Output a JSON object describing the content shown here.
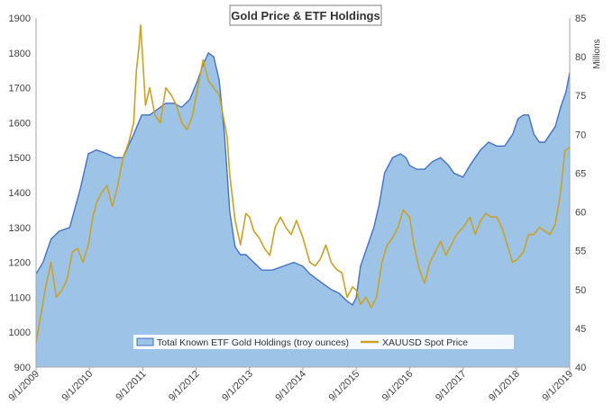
{
  "chart_data": {
    "type": "area",
    "title": "Gold Price & ETF Holdings",
    "x_tick_labels": [
      "9/1/2009",
      "9/1/2010",
      "9/1/2011",
      "9/1/2012",
      "9/1/2013",
      "9/1/2014",
      "9/1/2015",
      "9/1/2016",
      "9/1/2017",
      "9/1/2018",
      "9/1/2019"
    ],
    "y_left": {
      "ticks": [
        900,
        1000,
        1100,
        1200,
        1300,
        1400,
        1500,
        1600,
        1700,
        1800,
        1900
      ],
      "ylim": [
        900,
        1900
      ]
    },
    "y_right": {
      "label": "Millions",
      "ticks": [
        40,
        45,
        50,
        55,
        60,
        65,
        70,
        75,
        80,
        85
      ],
      "ylim": [
        40,
        85
      ]
    },
    "grid": false,
    "legend_position": "bottom-center",
    "colors": {
      "etf_fill": "#9dc3e6",
      "etf_line": "#4472c4",
      "spot_line": "#c9a227"
    },
    "series": [
      {
        "name": "Total Known ETF Gold Holdings (troy ounces)",
        "axis": "right",
        "kind": "area",
        "x": [
          2009.67,
          2009.8,
          2009.95,
          2010.1,
          2010.3,
          2010.5,
          2010.65,
          2010.8,
          2011.0,
          2011.15,
          2011.3,
          2011.5,
          2011.65,
          2011.8,
          2012.0,
          2012.1,
          2012.25,
          2012.4,
          2012.55,
          2012.7,
          2012.8,
          2012.9,
          2013.0,
          2013.1,
          2013.2,
          2013.3,
          2013.4,
          2013.5,
          2013.6,
          2013.75,
          2013.9,
          2014.1,
          2014.3,
          2014.5,
          2014.67,
          2014.8,
          2015.0,
          2015.2,
          2015.35,
          2015.5,
          2015.6,
          2015.67,
          2015.75,
          2015.9,
          2016.0,
          2016.1,
          2016.2,
          2016.35,
          2016.5,
          2016.6,
          2016.67,
          2016.8,
          2016.95,
          2017.1,
          2017.25,
          2017.4,
          2017.5,
          2017.67,
          2017.8,
          2018.0,
          2018.15,
          2018.3,
          2018.45,
          2018.6,
          2018.7,
          2018.8,
          2018.9,
          2019.0,
          2019.1,
          2019.2,
          2019.3,
          2019.4,
          2019.5,
          2019.6,
          2019.67
        ],
        "values": [
          52,
          53.5,
          56.5,
          57.5,
          58,
          63,
          67.5,
          68,
          67.5,
          67,
          67,
          70,
          72.5,
          72.5,
          73.5,
          74,
          74,
          73.5,
          74.5,
          77,
          79,
          80.5,
          80,
          77,
          70,
          60,
          55.5,
          54.5,
          54.5,
          53.5,
          52.5,
          52.5,
          53,
          53.5,
          53,
          52,
          51,
          50,
          49.5,
          48.5,
          48,
          49,
          53,
          56,
          58,
          61,
          65,
          67,
          67.5,
          67,
          66,
          65.5,
          65.5,
          66.5,
          67,
          66,
          65,
          64.5,
          66,
          68,
          69,
          68.5,
          68.5,
          70,
          72,
          72.5,
          72.5,
          70,
          69,
          69,
          70,
          71,
          73.5,
          75.5,
          78
        ]
      },
      {
        "name": "XAUUSD Spot Price",
        "axis": "left",
        "kind": "line",
        "x": [
          2009.67,
          2009.75,
          2009.85,
          2009.95,
          2010.05,
          2010.15,
          2010.25,
          2010.35,
          2010.45,
          2010.55,
          2010.65,
          2010.72,
          2010.8,
          2010.9,
          2011.0,
          2011.1,
          2011.2,
          2011.3,
          2011.4,
          2011.5,
          2011.55,
          2011.6,
          2011.63,
          2011.67,
          2011.72,
          2011.8,
          2011.9,
          2012.0,
          2012.1,
          2012.2,
          2012.3,
          2012.4,
          2012.5,
          2012.6,
          2012.7,
          2012.8,
          2012.9,
          2013.0,
          2013.1,
          2013.2,
          2013.25,
          2013.3,
          2013.4,
          2013.5,
          2013.6,
          2013.67,
          2013.75,
          2013.85,
          2013.95,
          2014.05,
          2014.15,
          2014.25,
          2014.35,
          2014.45,
          2014.55,
          2014.67,
          2014.8,
          2014.9,
          2015.0,
          2015.1,
          2015.2,
          2015.3,
          2015.4,
          2015.5,
          2015.6,
          2015.67,
          2015.75,
          2015.85,
          2015.95,
          2016.05,
          2016.15,
          2016.25,
          2016.35,
          2016.45,
          2016.55,
          2016.67,
          2016.75,
          2016.85,
          2016.95,
          2017.05,
          2017.15,
          2017.25,
          2017.35,
          2017.45,
          2017.55,
          2017.67,
          2017.8,
          2017.9,
          2018.0,
          2018.1,
          2018.2,
          2018.3,
          2018.4,
          2018.5,
          2018.6,
          2018.7,
          2018.8,
          2018.9,
          2019.0,
          2019.1,
          2019.2,
          2019.3,
          2019.4,
          2019.5,
          2019.58,
          2019.67
        ],
        "values": [
          970,
          1040,
          1130,
          1200,
          1100,
          1120,
          1150,
          1230,
          1240,
          1200,
          1250,
          1320,
          1370,
          1400,
          1420,
          1360,
          1420,
          1500,
          1540,
          1600,
          1750,
          1820,
          1880,
          1780,
          1650,
          1700,
          1620,
          1600,
          1700,
          1680,
          1650,
          1600,
          1580,
          1620,
          1700,
          1780,
          1720,
          1700,
          1680,
          1600,
          1560,
          1450,
          1320,
          1250,
          1340,
          1330,
          1290,
          1270,
          1240,
          1220,
          1300,
          1330,
          1300,
          1280,
          1320,
          1270,
          1200,
          1190,
          1210,
          1250,
          1200,
          1180,
          1170,
          1100,
          1130,
          1120,
          1080,
          1100,
          1070,
          1100,
          1200,
          1250,
          1270,
          1300,
          1350,
          1330,
          1250,
          1180,
          1140,
          1200,
          1230,
          1260,
          1220,
          1250,
          1280,
          1300,
          1330,
          1280,
          1320,
          1340,
          1330,
          1330,
          1300,
          1250,
          1200,
          1210,
          1230,
          1280,
          1280,
          1300,
          1290,
          1280,
          1310,
          1400,
          1520,
          1530
        ]
      }
    ]
  }
}
